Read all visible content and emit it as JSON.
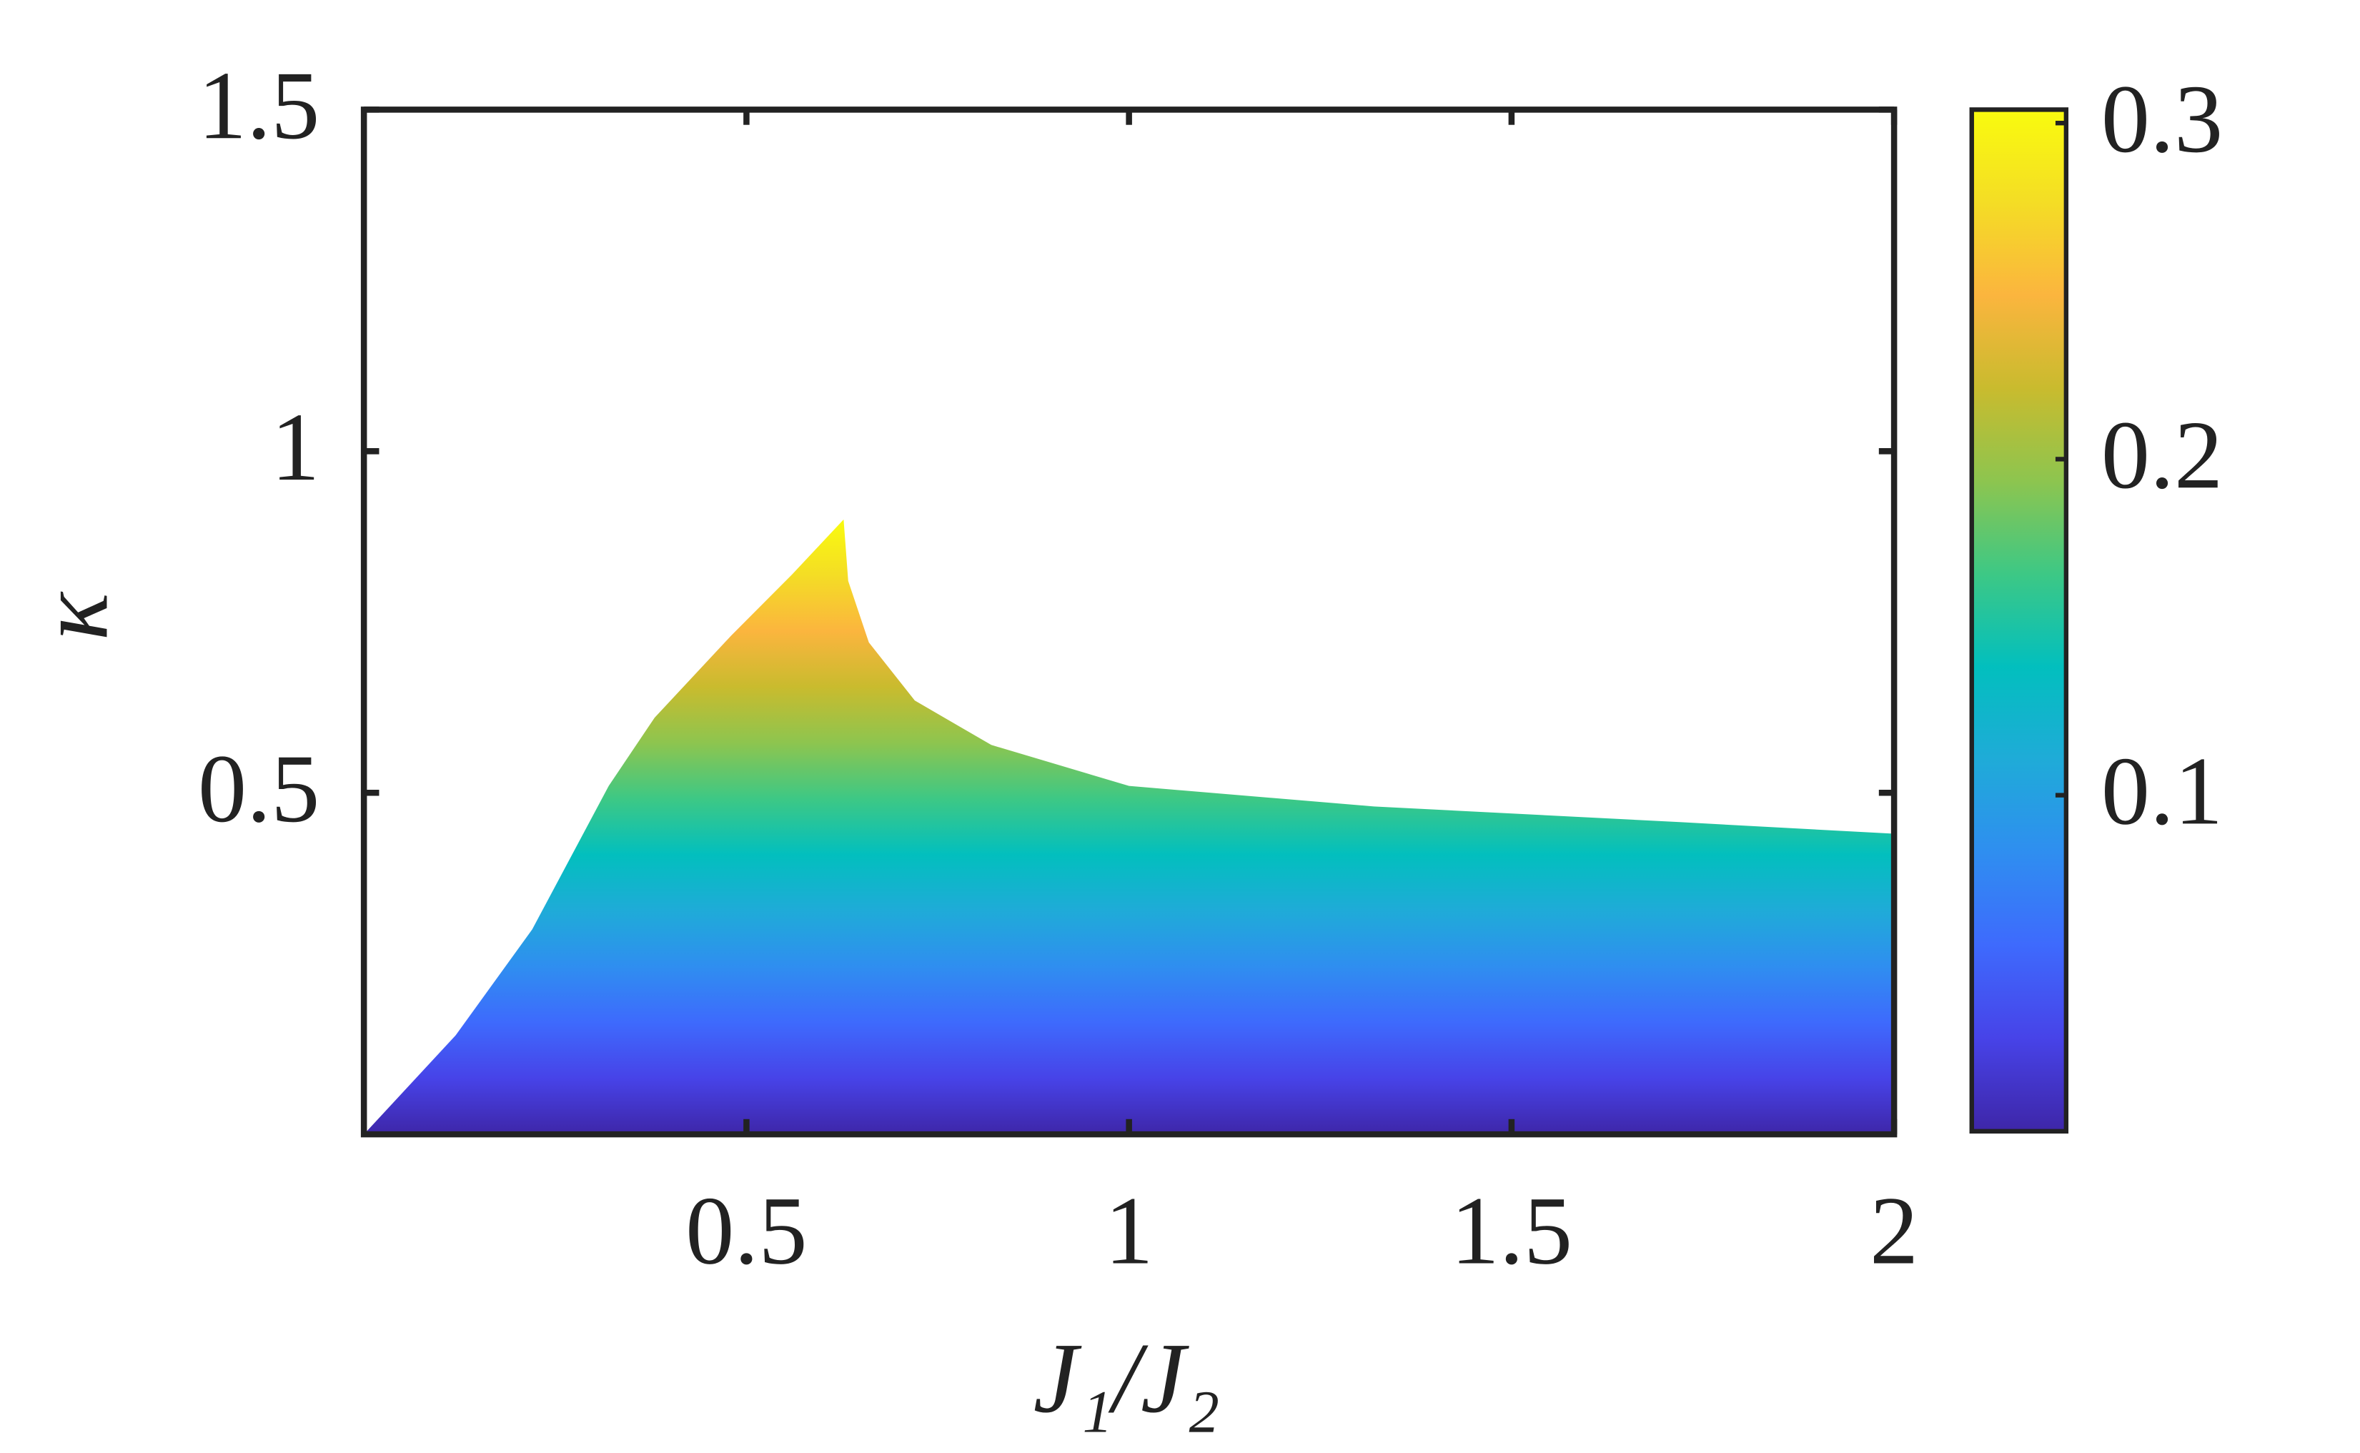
{
  "chart_data": {
    "type": "area",
    "xlabel": "J₁/J₂",
    "ylabel": "κ",
    "x": [
      0,
      0.12,
      0.22,
      0.32,
      0.38,
      0.48,
      0.56,
      0.627,
      0.633,
      0.66,
      0.72,
      0.82,
      1.0,
      1.32,
      1.72,
      2.0
    ],
    "y": [
      0,
      0.145,
      0.3,
      0.51,
      0.61,
      0.73,
      0.82,
      0.9,
      0.81,
      0.72,
      0.635,
      0.57,
      0.51,
      0.48,
      0.457,
      0.44
    ],
    "xlim": [
      0,
      2
    ],
    "xticks": [
      0.5,
      1,
      1.5,
      2
    ],
    "ylim": [
      0,
      1.5
    ],
    "yticks": [
      0.5,
      1,
      1.5
    ],
    "colormap": [
      "#3e26a8",
      "#4743e8",
      "#3e6afd",
      "#2f8ef0",
      "#1fabd8",
      "#02bfbe",
      "#3dc885",
      "#8dc54f",
      "#c9bb2e",
      "#fbb53e",
      "#f4dd25",
      "#f9fb0e"
    ],
    "clim": [
      0,
      0.304
    ],
    "cticks": [
      0.1,
      0.2,
      0.3
    ]
  }
}
